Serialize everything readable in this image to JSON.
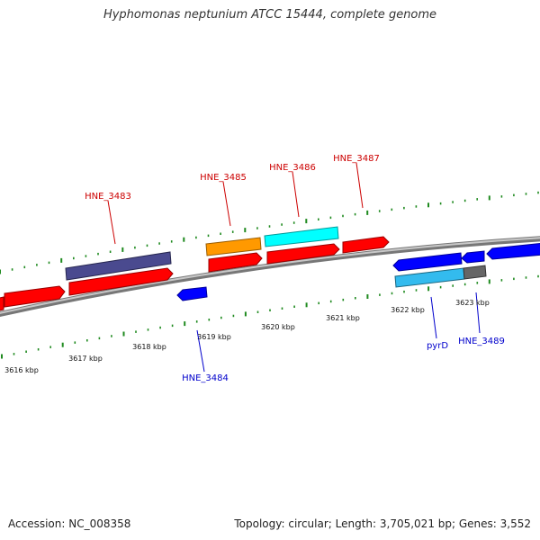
{
  "title": "Hyphomonas neptunium ATCC 15444, complete genome",
  "footer": {
    "accession": "Accession: NC_008358",
    "stats": "Topology: circular; Length: 3,705,021 bp; Genes: 3,552"
  },
  "colors": {
    "backbone": "#8c8c8c",
    "tick": "#1f8a1f",
    "forward_label": "#cc0000",
    "reverse_label": "#0000cc",
    "red": "#ff0000",
    "blue": "#0000ff",
    "navy": "#4a4a8f",
    "orange": "#ff9900",
    "cyan": "#00ffff",
    "sky": "#33bbee",
    "gray": "#666666"
  },
  "scale": {
    "labels": [
      "3616 kbp",
      "3617 kbp",
      "3618 kbp",
      "3619 kbp",
      "3620 kbp",
      "3621 kbp",
      "3622 kbp",
      "3623 kbp"
    ]
  },
  "gene_labels": {
    "forward": [
      "HNE_3483",
      "HNE_3485",
      "HNE_3486",
      "HNE_3487"
    ],
    "reverse": [
      "HNE_3484",
      "pyrD",
      "HNE_3489"
    ]
  }
}
